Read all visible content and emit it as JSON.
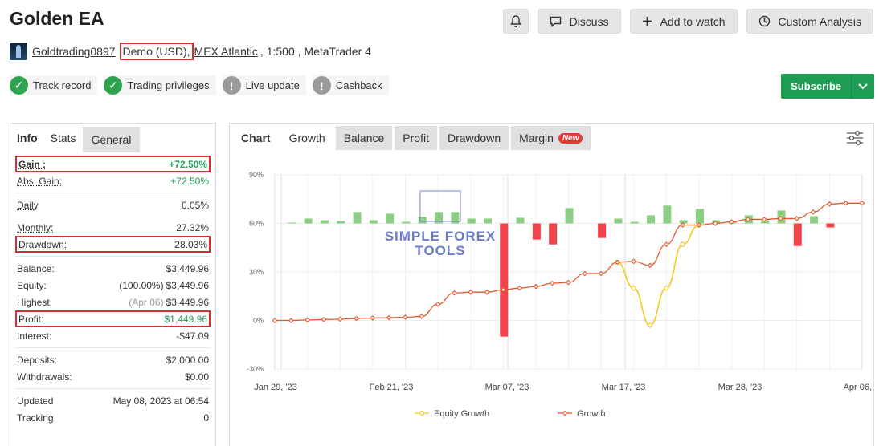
{
  "header": {
    "title": "Golden EA",
    "buttons": {
      "discuss": "Discuss",
      "watch": "Add to watch",
      "analysis": "Custom Analysis"
    }
  },
  "account": {
    "owner": "Goldtrading0897",
    "type": "Demo (USD),",
    "broker": "MEX Atlantic",
    "details": ", 1:500 , MetaTrader 4"
  },
  "badges": [
    {
      "label": "Track record",
      "status": "ok"
    },
    {
      "label": "Trading privileges",
      "status": "ok"
    },
    {
      "label": "Live update",
      "status": "na"
    },
    {
      "label": "Cashback",
      "status": "na"
    }
  ],
  "subscribe_label": "Subscribe",
  "left_tabs": [
    "Info",
    "Stats",
    "General"
  ],
  "stats": {
    "gain": {
      "label": "Gain :",
      "value": "+72.50%"
    },
    "abs_gain": {
      "label": "Abs. Gain:",
      "value": "+72.50%"
    },
    "daily": {
      "label": "Daily",
      "value": "0.05%"
    },
    "monthly": {
      "label": "Monthly:",
      "value": "27.32%"
    },
    "drawdown": {
      "label": "Drawdown:",
      "value": "28.03%"
    },
    "balance": {
      "label": "Balance:",
      "value": "$3,449.96"
    },
    "equity": {
      "label": "Equity:",
      "note": "(100.00%)",
      "value": "$3,449.96"
    },
    "highest": {
      "label": "Highest:",
      "note": "(Apr 06)",
      "value": "$3,449.96"
    },
    "profit": {
      "label": "Profit:",
      "value": "$1,449.96"
    },
    "interest": {
      "label": "Interest:",
      "value": "-$47.09"
    },
    "deposits": {
      "label": "Deposits:",
      "value": "$2,000.00"
    },
    "withdrawals": {
      "label": "Withdrawals:",
      "value": "$0.00"
    },
    "updated": {
      "label": "Updated",
      "value": "May 08, 2023 at 06:54"
    },
    "tracking": {
      "label": "Tracking",
      "value": "0"
    }
  },
  "chart_tabs": {
    "chart": "Chart",
    "growth": "Growth",
    "balance": "Balance",
    "profit": "Profit",
    "drawdown": "Drawdown",
    "margin": "Margin",
    "new": "New"
  },
  "watermark": {
    "line1": "SIMPLE FOREX",
    "line2": "TOOLS"
  },
  "colors": {
    "growth": "#e4572e",
    "equity": "#f5c518",
    "bar_pos": "#8ccf84",
    "bar_neg": "#f0434a",
    "accent_green": "#1f9d55",
    "highlight_red": "#d32f2f"
  },
  "chart_data": {
    "type": "line",
    "y_ticks": [
      "90%",
      "60%",
      "30%",
      "0%",
      "-30%"
    ],
    "ylim": [
      -30,
      90
    ],
    "x_ticks": [
      "Jan 29, '23",
      "Feb 21, '23",
      "Mar 07, '23",
      "Mar 17, '23",
      "Mar 28, '23",
      "Apr 06, '23"
    ],
    "legend": {
      "position": "bottom",
      "entries": [
        "Equity Growth",
        "Growth"
      ]
    },
    "growth": [
      0,
      0,
      0.3,
      0.6,
      0.8,
      1.2,
      1.5,
      1.7,
      2,
      2.5,
      10,
      17,
      17.5,
      17.5,
      19,
      20,
      21,
      23,
      23.5,
      29,
      29,
      36,
      36.5,
      34,
      47,
      59,
      59,
      60,
      61,
      62.5,
      62.5,
      63,
      63,
      67,
      72,
      72.5,
      72.5
    ],
    "equity_growth": {
      "start_index": 21,
      "values": [
        36,
        20,
        -3,
        20,
        47,
        59
      ]
    },
    "bars": [
      {
        "i": 1,
        "v": 0.5
      },
      {
        "i": 2,
        "v": 3
      },
      {
        "i": 3,
        "v": 2
      },
      {
        "i": 4,
        "v": 1.5
      },
      {
        "i": 5,
        "v": 7
      },
      {
        "i": 6,
        "v": 2
      },
      {
        "i": 7,
        "v": 6
      },
      {
        "i": 8,
        "v": 1
      },
      {
        "i": 9,
        "v": 4
      },
      {
        "i": 10,
        "v": 7
      },
      {
        "i": 11,
        "v": 7
      },
      {
        "i": 12,
        "v": 3
      },
      {
        "i": 13,
        "v": 3
      },
      {
        "i": 14,
        "v": -70
      },
      {
        "i": 15,
        "v": 3.5
      },
      {
        "i": 16,
        "v": -10
      },
      {
        "i": 17,
        "v": -13
      },
      {
        "i": 18,
        "v": 9.5
      },
      {
        "i": 20,
        "v": -9
      },
      {
        "i": 21,
        "v": 3
      },
      {
        "i": 22,
        "v": 1
      },
      {
        "i": 23,
        "v": 5
      },
      {
        "i": 24,
        "v": 11
      },
      {
        "i": 25,
        "v": 2
      },
      {
        "i": 26,
        "v": 9
      },
      {
        "i": 27,
        "v": 2
      },
      {
        "i": 28,
        "v": 1.5
      },
      {
        "i": 29,
        "v": 5
      },
      {
        "i": 30,
        "v": 2
      },
      {
        "i": 31,
        "v": 8
      },
      {
        "i": 32,
        "v": -14
      },
      {
        "i": 33,
        "v": 4.5
      },
      {
        "i": 34,
        "v": -2.5
      }
    ]
  }
}
